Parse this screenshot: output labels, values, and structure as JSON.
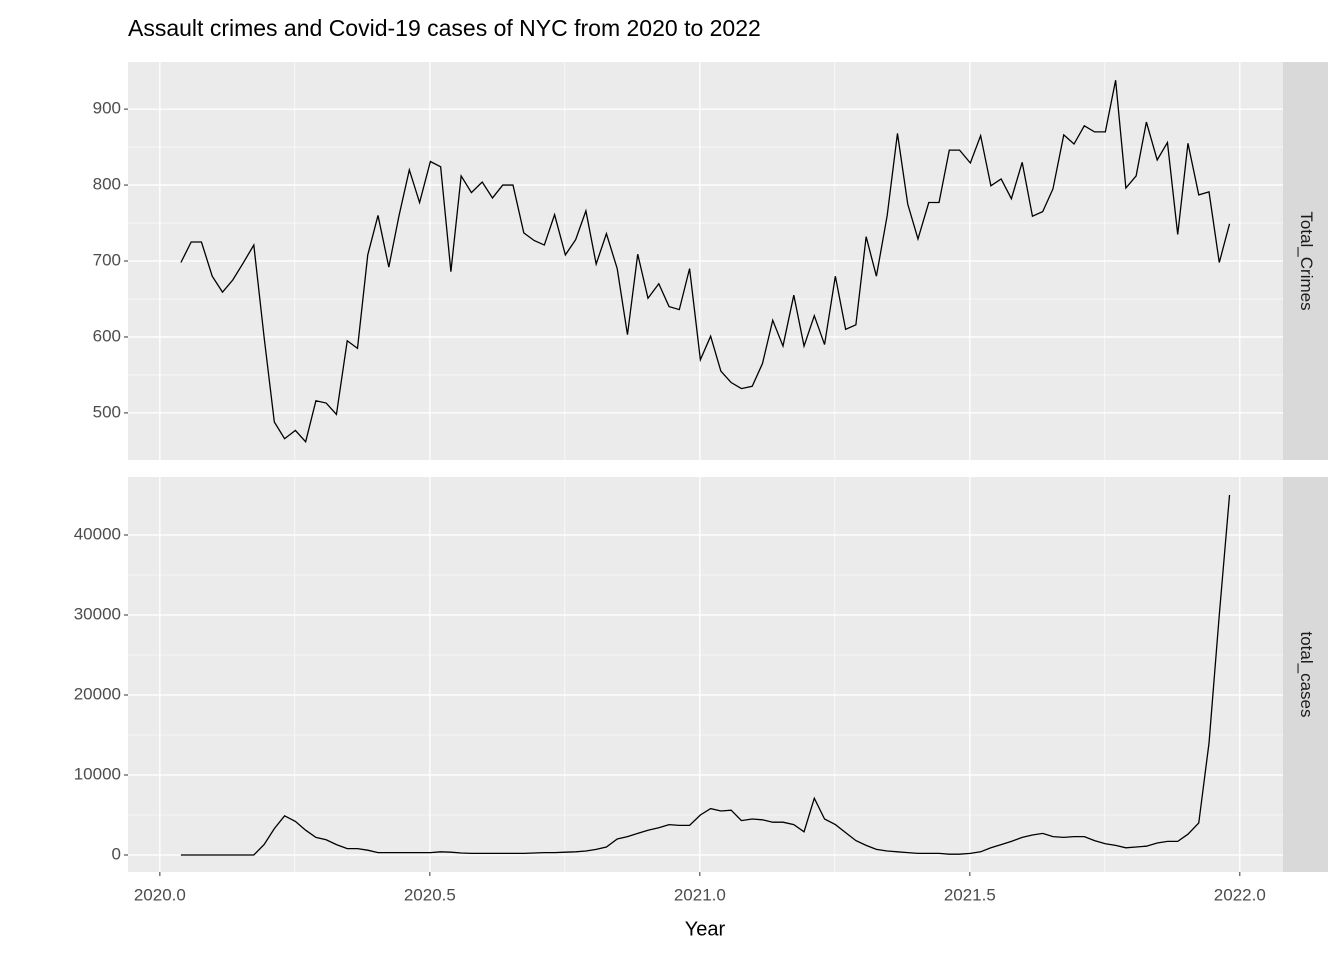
{
  "chart_data": {
    "type": "line",
    "title": "Assault crimes and Covid-19 cases of NYC from 2020 to 2022",
    "x_label": "Year",
    "x": [
      2020.039,
      2020.058,
      2020.077,
      2020.097,
      2020.116,
      2020.135,
      2020.154,
      2020.174,
      2020.193,
      2020.212,
      2020.231,
      2020.251,
      2020.27,
      2020.289,
      2020.308,
      2020.327,
      2020.347,
      2020.366,
      2020.385,
      2020.404,
      2020.424,
      2020.443,
      2020.462,
      2020.481,
      2020.501,
      2020.52,
      2020.539,
      2020.558,
      2020.577,
      2020.597,
      2020.616,
      2020.635,
      2020.654,
      2020.674,
      2020.693,
      2020.712,
      2020.731,
      2020.751,
      2020.77,
      2020.789,
      2020.808,
      2020.827,
      2020.847,
      2020.866,
      2020.885,
      2020.904,
      2020.924,
      2020.943,
      2020.962,
      2020.981,
      2021.001,
      2021.02,
      2021.039,
      2021.058,
      2021.077,
      2021.097,
      2021.116,
      2021.135,
      2021.154,
      2021.174,
      2021.193,
      2021.212,
      2021.231,
      2021.251,
      2021.27,
      2021.289,
      2021.308,
      2021.327,
      2021.347,
      2021.366,
      2021.385,
      2021.404,
      2021.424,
      2021.443,
      2021.462,
      2021.481,
      2021.501,
      2021.52,
      2021.539,
      2021.558,
      2021.577,
      2021.597,
      2021.616,
      2021.635,
      2021.654,
      2021.674,
      2021.693,
      2021.712,
      2021.731,
      2021.751,
      2021.77,
      2021.789,
      2021.808,
      2021.827,
      2021.847,
      2021.866,
      2021.885,
      2021.904,
      2021.924,
      2021.943,
      2021.962,
      2021.981
    ],
    "xlim": [
      2019.941,
      2022.08
    ],
    "xticks": [
      {
        "value": 2020,
        "label": "2020.0"
      },
      {
        "value": 2020.5,
        "label": "2020.5"
      },
      {
        "value": 2021,
        "label": "2021.0"
      },
      {
        "value": 2021.5,
        "label": "2021.5"
      },
      {
        "value": 2022,
        "label": "2022.0"
      }
    ],
    "grid": true,
    "series": [
      {
        "name": "Total_Crimes",
        "color": "#000000",
        "ylim": [
          438,
          962
        ],
        "yticks": [
          500,
          600,
          700,
          800,
          900
        ],
        "values": [
          698,
          725,
          725,
          680,
          659,
          675,
          697,
          721,
          600,
          488,
          466,
          477,
          462,
          516,
          513,
          498,
          595,
          585,
          708,
          760,
          692,
          760,
          820,
          777,
          831,
          824,
          686,
          812,
          790,
          804,
          783,
          800,
          800,
          737,
          727,
          721,
          761,
          708,
          728,
          766,
          696,
          736,
          690,
          603,
          709,
          651,
          670,
          640,
          636,
          690,
          570,
          601,
          555,
          540,
          532,
          535,
          565,
          622,
          588,
          655,
          588,
          628,
          590,
          680,
          610,
          616,
          732,
          680,
          760,
          868,
          775,
          729,
          777,
          777,
          846,
          846,
          829,
          865,
          799,
          808,
          782,
          830,
          759,
          765,
          795,
          866,
          854,
          878,
          870,
          870,
          938,
          796,
          812,
          883,
          833,
          856,
          735,
          855,
          787,
          791,
          698,
          749
        ]
      },
      {
        "name": "total_cases",
        "color": "#000000",
        "ylim": [
          -2125,
          47250
        ],
        "yticks": [
          0,
          10000,
          20000,
          30000,
          40000
        ],
        "values": [
          0,
          0,
          0,
          0,
          0,
          0,
          0,
          0,
          1300,
          3300,
          4900,
          4200,
          3100,
          2200,
          1900,
          1300,
          800,
          800,
          600,
          300,
          300,
          300,
          300,
          300,
          300,
          400,
          350,
          250,
          200,
          200,
          200,
          200,
          200,
          200,
          250,
          300,
          300,
          350,
          400,
          500,
          700,
          1000,
          2000,
          2300,
          2700,
          3100,
          3400,
          3800,
          3700,
          3700,
          5000,
          5800,
          5500,
          5600,
          4300,
          4500,
          4400,
          4100,
          4100,
          3800,
          2900,
          7100,
          4500,
          3800,
          2800,
          1800,
          1200,
          700,
          500,
          400,
          300,
          200,
          200,
          200,
          100,
          100,
          200,
          400,
          900,
          1300,
          1700,
          2200,
          2500,
          2700,
          2300,
          2200,
          2300,
          2300,
          1800,
          1400,
          1200,
          900,
          1000,
          1100,
          1500,
          1700,
          1700,
          2600,
          4000,
          14000,
          30000,
          45000
        ]
      }
    ]
  }
}
